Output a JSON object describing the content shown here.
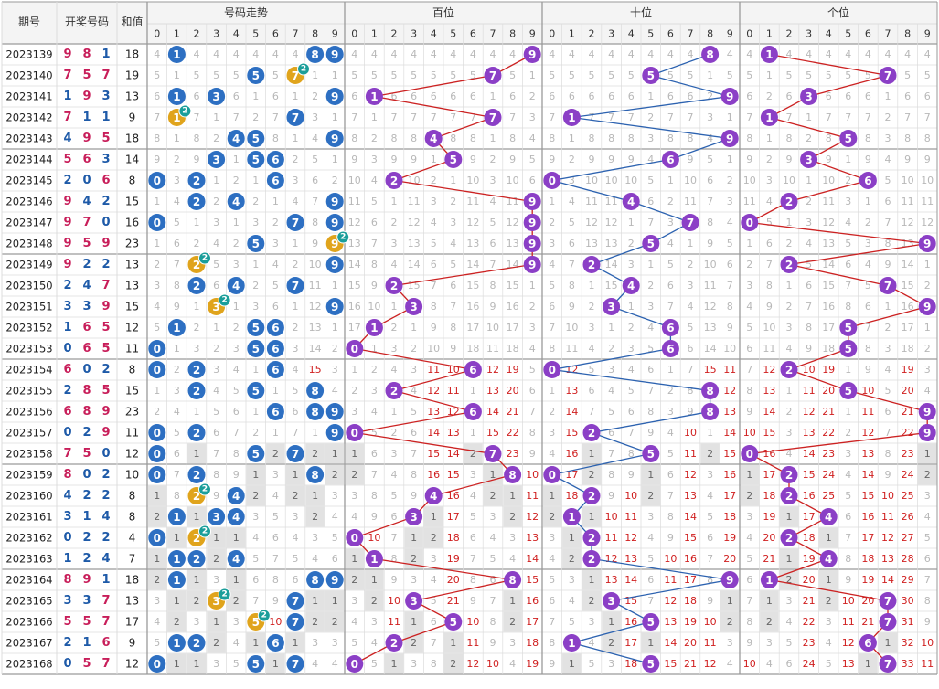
{
  "chart_data": {
    "type": "table",
    "title": "",
    "header": {
      "period": "期号",
      "draw": "开奖号码",
      "sum": "和值",
      "trend": "号码走势",
      "hundreds": "百位",
      "tens": "十位",
      "units": "个位"
    },
    "digits": [
      "0",
      "1",
      "2",
      "3",
      "4",
      "5",
      "6",
      "7",
      "8",
      "9"
    ],
    "rows": [
      {
        "period": "2023139",
        "draw": [
          9,
          8,
          1
        ],
        "sum": 18
      },
      {
        "period": "2023140",
        "draw": [
          7,
          5,
          7
        ],
        "sum": 19
      },
      {
        "period": "2023141",
        "draw": [
          1,
          9,
          3
        ],
        "sum": 13
      },
      {
        "period": "2023142",
        "draw": [
          7,
          1,
          1
        ],
        "sum": 9
      },
      {
        "period": "2023143",
        "draw": [
          4,
          9,
          5
        ],
        "sum": 18
      },
      {
        "period": "2023144",
        "draw": [
          5,
          6,
          3
        ],
        "sum": 14
      },
      {
        "period": "2023145",
        "draw": [
          2,
          0,
          6
        ],
        "sum": 8
      },
      {
        "period": "2023146",
        "draw": [
          9,
          4,
          2
        ],
        "sum": 15
      },
      {
        "period": "2023147",
        "draw": [
          9,
          7,
          0
        ],
        "sum": 16
      },
      {
        "period": "2023148",
        "draw": [
          9,
          5,
          9
        ],
        "sum": 23
      },
      {
        "period": "2023149",
        "draw": [
          9,
          2,
          2
        ],
        "sum": 13
      },
      {
        "period": "2023150",
        "draw": [
          2,
          4,
          7
        ],
        "sum": 13
      },
      {
        "period": "2023151",
        "draw": [
          3,
          3,
          9
        ],
        "sum": 15
      },
      {
        "period": "2023152",
        "draw": [
          1,
          6,
          5
        ],
        "sum": 12
      },
      {
        "period": "2023153",
        "draw": [
          0,
          6,
          5
        ],
        "sum": 11
      },
      {
        "period": "2023154",
        "draw": [
          6,
          0,
          2
        ],
        "sum": 8
      },
      {
        "period": "2023155",
        "draw": [
          2,
          8,
          5
        ],
        "sum": 15
      },
      {
        "period": "2023156",
        "draw": [
          6,
          8,
          9
        ],
        "sum": 23
      },
      {
        "period": "2023157",
        "draw": [
          0,
          2,
          9
        ],
        "sum": 11
      },
      {
        "period": "2023158",
        "draw": [
          7,
          5,
          0
        ],
        "sum": 12
      },
      {
        "period": "2023159",
        "draw": [
          8,
          0,
          2
        ],
        "sum": 10
      },
      {
        "period": "2023160",
        "draw": [
          4,
          2,
          2
        ],
        "sum": 8
      },
      {
        "period": "2023161",
        "draw": [
          3,
          1,
          4
        ],
        "sum": 8
      },
      {
        "period": "2023162",
        "draw": [
          0,
          2,
          2
        ],
        "sum": 4
      },
      {
        "period": "2023163",
        "draw": [
          1,
          2,
          4
        ],
        "sum": 7
      },
      {
        "period": "2023164",
        "draw": [
          8,
          9,
          1
        ],
        "sum": 18
      },
      {
        "period": "2023165",
        "draw": [
          3,
          3,
          7
        ],
        "sum": 13
      },
      {
        "period": "2023166",
        "draw": [
          5,
          5,
          7
        ],
        "sum": 17
      },
      {
        "period": "2023167",
        "draw": [
          2,
          1,
          6
        ],
        "sum": 9
      },
      {
        "period": "2023168",
        "draw": [
          0,
          5,
          7
        ],
        "sum": 12
      }
    ],
    "repeat_badge": "2",
    "grid": true,
    "colors": {
      "header_bg": "#f4f4f4",
      "grid": "#dcdcdc",
      "group_border": "#9a9a9a",
      "hot_digit": "#c81e5a",
      "cold_digit": "#1e5aa8",
      "trend_ball": "#2d6fc2",
      "repeat_ball": "#e0a41c",
      "repeat_badge": "#1b9e9a",
      "position_ball": "#8b3fc6",
      "hundreds_line": "#cc2222",
      "tens_line": "#2c62b0",
      "units_line": "#cc2222",
      "miss_text": "#b8b8b8",
      "hot_miss_text": "#d02020",
      "recent_band": "#e2e2e2"
    }
  }
}
